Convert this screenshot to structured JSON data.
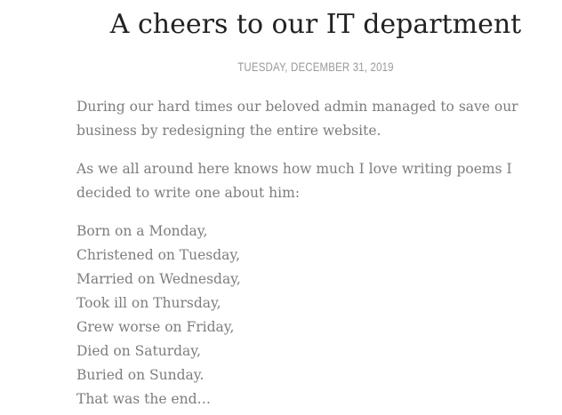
{
  "post": {
    "title": "A cheers to our IT department",
    "date": "TUESDAY, DECEMBER 31, 2019",
    "paragraphs": [
      "During our hard times our beloved admin managed to save our business by redesigning the entire website.",
      "As we all around here knows how much I love writing poems I decided to write one about him:"
    ],
    "poem": [
      "Born on a Monday,",
      "Christened on Tuesday,",
      "Married on Wednesday,",
      "Took ill on Thursday,",
      "Grew worse on Friday,",
      "Died on Saturday,",
      "Buried on Sunday.",
      "That was the end…"
    ]
  }
}
